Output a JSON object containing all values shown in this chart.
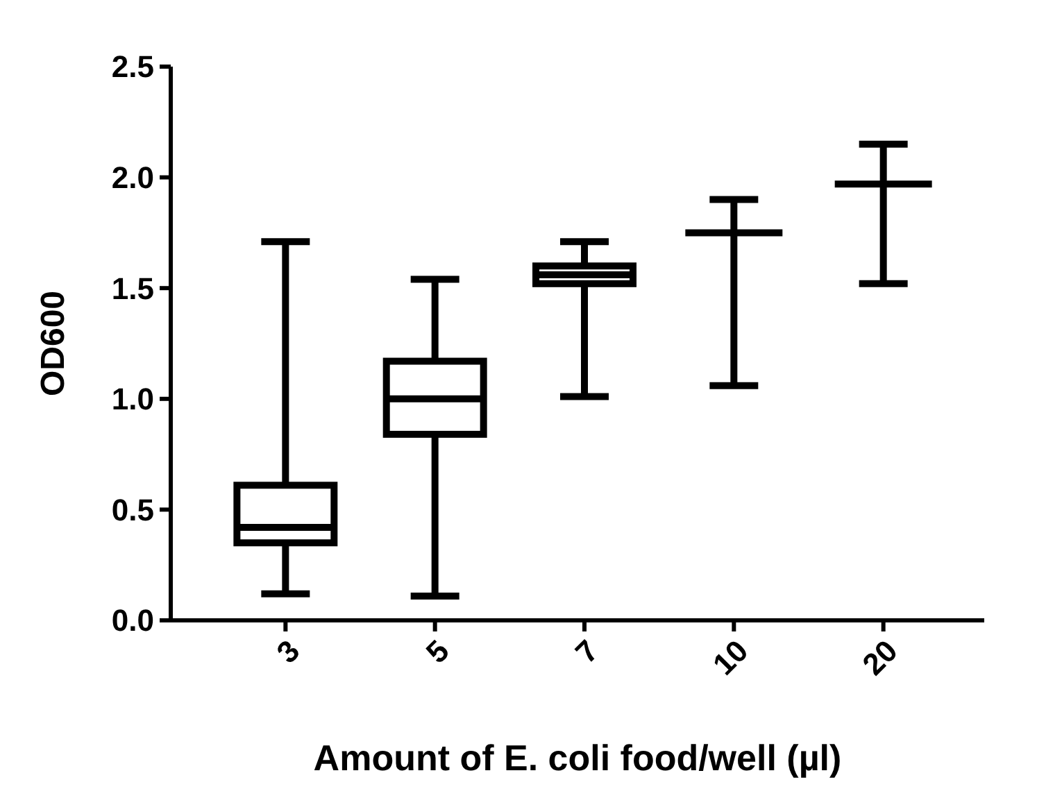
{
  "chart_data": {
    "type": "box",
    "xlabel": "Amount of E. coli food/well (µl)",
    "ylabel": "OD600",
    "categories": [
      "3",
      "5",
      "7",
      "10",
      "20"
    ],
    "ylim": [
      0,
      2.5
    ],
    "yticks": [
      {
        "value": 0,
        "label": "0.0"
      },
      {
        "value": 0.5,
        "label": "0.5"
      },
      {
        "value": 1,
        "label": "1.0"
      },
      {
        "value": 1.5,
        "label": "1.5"
      },
      {
        "value": 2,
        "label": "2.0"
      },
      {
        "value": 2.5,
        "label": "2.5"
      }
    ],
    "color": "#000000",
    "boxes": [
      {
        "low": 0.12,
        "q1": 0.35,
        "median": 0.42,
        "q3": 0.61,
        "high": 1.71
      },
      {
        "low": 0.11,
        "q1": 0.84,
        "median": 1.0,
        "q3": 1.17,
        "high": 1.54
      },
      {
        "low": 1.01,
        "q1": 1.52,
        "median": 1.56,
        "q3": 1.6,
        "high": 1.71
      },
      {
        "low": 1.06,
        "q1": 1.75,
        "median": 1.75,
        "q3": 1.75,
        "high": 1.9
      },
      {
        "low": 1.52,
        "q1": 1.97,
        "median": 1.97,
        "q3": 1.97,
        "high": 2.15
      }
    ]
  }
}
